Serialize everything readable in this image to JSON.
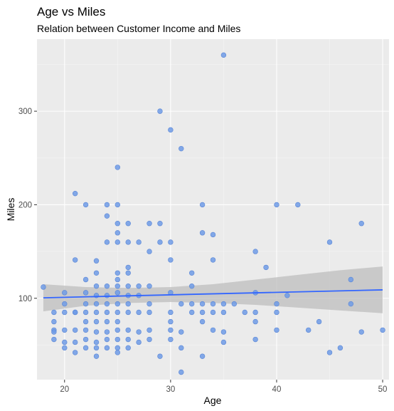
{
  "chart_data": {
    "type": "scatter",
    "title": "Age vs Miles",
    "subtitle": "Relation between Customer Income and Miles",
    "xlabel": "Age",
    "ylabel": "Miles",
    "xlim": [
      17.4,
      50.6
    ],
    "ylim": [
      13,
      377
    ],
    "x_ticks": [
      20,
      30,
      40,
      50
    ],
    "y_ticks": [
      100,
      200,
      300
    ],
    "grid": true,
    "legend": "none",
    "colors": {
      "panel": "#ebebeb",
      "grid_major": "#ffffff",
      "grid_minor": "#f5f5f5",
      "points": "#6f9be6",
      "points_stroke": "#5a86d6",
      "fit_line": "#3366ff",
      "confidence_band": "#bdbdbd",
      "tick_label": "#4d4d4d",
      "tick_mark": "#333333"
    },
    "series": [
      {
        "kind": "points",
        "points": [
          [
            18,
            112
          ],
          [
            19,
            85
          ],
          [
            19,
            75
          ],
          [
            19,
            66
          ],
          [
            19,
            64
          ],
          [
            19,
            56
          ],
          [
            20,
            106
          ],
          [
            20,
            94
          ],
          [
            20,
            85
          ],
          [
            20,
            66
          ],
          [
            20,
            53
          ],
          [
            20,
            47
          ],
          [
            21,
            212
          ],
          [
            21,
            141
          ],
          [
            21,
            85
          ],
          [
            21,
            85
          ],
          [
            21,
            66
          ],
          [
            21,
            53
          ],
          [
            21,
            42
          ],
          [
            22,
            200
          ],
          [
            22,
            120
          ],
          [
            22,
            106
          ],
          [
            22,
            94
          ],
          [
            22,
            85
          ],
          [
            22,
            75
          ],
          [
            22,
            66
          ],
          [
            22,
            56
          ],
          [
            22,
            47
          ],
          [
            23,
            140
          ],
          [
            23,
            127
          ],
          [
            23,
            113
          ],
          [
            23,
            103
          ],
          [
            23,
            94
          ],
          [
            23,
            85
          ],
          [
            23,
            75
          ],
          [
            23,
            64
          ],
          [
            23,
            53
          ],
          [
            23,
            47
          ],
          [
            23,
            38
          ],
          [
            24,
            200
          ],
          [
            24,
            188
          ],
          [
            24,
            160
          ],
          [
            24,
            113
          ],
          [
            24,
            103
          ],
          [
            24,
            94
          ],
          [
            24,
            85
          ],
          [
            24,
            75
          ],
          [
            24,
            64
          ],
          [
            24,
            56
          ],
          [
            24,
            47
          ],
          [
            25,
            240
          ],
          [
            25,
            200
          ],
          [
            25,
            180
          ],
          [
            25,
            170
          ],
          [
            25,
            160
          ],
          [
            25,
            127
          ],
          [
            25,
            120
          ],
          [
            25,
            113
          ],
          [
            25,
            106
          ],
          [
            25,
            94
          ],
          [
            25,
            85
          ],
          [
            25,
            75
          ],
          [
            25,
            66
          ],
          [
            25,
            56
          ],
          [
            25,
            47
          ],
          [
            25,
            42
          ],
          [
            26,
            180
          ],
          [
            26,
            160
          ],
          [
            26,
            133
          ],
          [
            26,
            127
          ],
          [
            26,
            113
          ],
          [
            26,
            103
          ],
          [
            26,
            94
          ],
          [
            26,
            85
          ],
          [
            26,
            66
          ],
          [
            26,
            56
          ],
          [
            26,
            47
          ],
          [
            27,
            160
          ],
          [
            27,
            113
          ],
          [
            27,
            103
          ],
          [
            27,
            85
          ],
          [
            27,
            64
          ],
          [
            27,
            53
          ],
          [
            28,
            180
          ],
          [
            28,
            150
          ],
          [
            28,
            113
          ],
          [
            28,
            94
          ],
          [
            28,
            85
          ],
          [
            28,
            66
          ],
          [
            28,
            56
          ],
          [
            29,
            300
          ],
          [
            29,
            180
          ],
          [
            29,
            160
          ],
          [
            29,
            38
          ],
          [
            30,
            280
          ],
          [
            30,
            160
          ],
          [
            30,
            141
          ],
          [
            30,
            106
          ],
          [
            30,
            85
          ],
          [
            30,
            75
          ],
          [
            30,
            66
          ],
          [
            30,
            56
          ],
          [
            31,
            260
          ],
          [
            31,
            94
          ],
          [
            31,
            64
          ],
          [
            31,
            47
          ],
          [
            31,
            21
          ],
          [
            32,
            127
          ],
          [
            32,
            113
          ],
          [
            32,
            94
          ],
          [
            32,
            85
          ],
          [
            33,
            200
          ],
          [
            33,
            170
          ],
          [
            33,
            94
          ],
          [
            33,
            85
          ],
          [
            33,
            75
          ],
          [
            33,
            38
          ],
          [
            34,
            168
          ],
          [
            34,
            141
          ],
          [
            34,
            94
          ],
          [
            34,
            85
          ],
          [
            34,
            66
          ],
          [
            35,
            360
          ],
          [
            35,
            94
          ],
          [
            35,
            85
          ],
          [
            35,
            64
          ],
          [
            35,
            53
          ],
          [
            36,
            94
          ],
          [
            37,
            85
          ],
          [
            38,
            150
          ],
          [
            38,
            106
          ],
          [
            38,
            85
          ],
          [
            38,
            75
          ],
          [
            38,
            56
          ],
          [
            39,
            133
          ],
          [
            40,
            200
          ],
          [
            40,
            94
          ],
          [
            40,
            85
          ],
          [
            40,
            66
          ],
          [
            41,
            103
          ],
          [
            42,
            200
          ],
          [
            43,
            66
          ],
          [
            44,
            75
          ],
          [
            45,
            160
          ],
          [
            45,
            42
          ],
          [
            46,
            47
          ],
          [
            47,
            120
          ],
          [
            47,
            94
          ],
          [
            48,
            180
          ],
          [
            48,
            64
          ],
          [
            50,
            66
          ]
        ]
      },
      {
        "kind": "fit_line",
        "x": [
          18,
          50
        ],
        "y": [
          100.5,
          109
        ]
      },
      {
        "kind": "confidence_band",
        "x": [
          18,
          22,
          26,
          30,
          34,
          38,
          42,
          46,
          50
        ],
        "lower": [
          86,
          92,
          95,
          96,
          95,
          93,
          90,
          87,
          84
        ],
        "upper": [
          115,
          112,
          111,
          112,
          115,
          120,
          125,
          130,
          134
        ]
      }
    ]
  }
}
